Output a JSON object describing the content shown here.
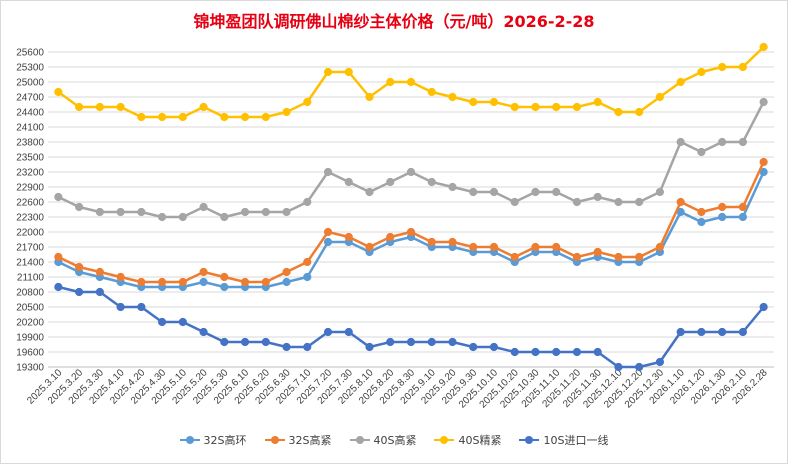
{
  "chart_data": {
    "type": "line",
    "title": "锦坤盈团队调研佛山棉纱主体价格（元/吨）2026-2-28",
    "xlabel": "",
    "ylabel": "",
    "ylim": [
      19300,
      25600
    ],
    "yticks": [
      19300,
      19600,
      19900,
      20200,
      20500,
      20800,
      21100,
      21400,
      21700,
      22000,
      22300,
      22600,
      22900,
      23200,
      23500,
      23800,
      24100,
      24400,
      24700,
      25000,
      25300,
      25600
    ],
    "grid": "horizontal",
    "legend_position": "bottom",
    "categories": [
      "2025.3.10",
      "2025.3.20",
      "2025.3.30",
      "2025.4.10",
      "2025.4.20",
      "2025.4.30",
      "2025.5.10",
      "2025.5.20",
      "2025.5.30",
      "2025.6.10",
      "2025.6.20",
      "2025.6.30",
      "2025.7.10",
      "2025.7.20",
      "2025.7.30",
      "2025.8.10",
      "2025.8.20",
      "2025.8.30",
      "2025.9.10",
      "2025.9.20",
      "2025.9.30",
      "2025.10.10",
      "2025.10.20",
      "2025.10.30",
      "2025.11.10",
      "2025.11.20",
      "2025.11.30",
      "2025.12.10",
      "2025.12.20",
      "2025.12.30",
      "2026.1.10",
      "2026.1.20",
      "2026.1.30",
      "2026.2.10",
      "2026.2.28"
    ],
    "series": [
      {
        "name": "32S高环",
        "color": "#5b9bd5",
        "values": [
          21400,
          21200,
          21100,
          21000,
          20900,
          20900,
          20900,
          21000,
          20900,
          20900,
          20900,
          21000,
          21100,
          21800,
          21800,
          21600,
          21800,
          21900,
          21700,
          21700,
          21600,
          21600,
          21400,
          21600,
          21600,
          21400,
          21500,
          21400,
          21400,
          21600,
          22400,
          22200,
          22300,
          22300,
          23200
        ]
      },
      {
        "name": "32S高紧",
        "color": "#ed7d31",
        "values": [
          21500,
          21300,
          21200,
          21100,
          21000,
          21000,
          21000,
          21200,
          21100,
          21000,
          21000,
          21200,
          21400,
          22000,
          21900,
          21700,
          21900,
          22000,
          21800,
          21800,
          21700,
          21700,
          21500,
          21700,
          21700,
          21500,
          21600,
          21500,
          21500,
          21700,
          22600,
          22400,
          22500,
          22500,
          23400
        ]
      },
      {
        "name": "40S高紧",
        "color": "#a5a5a5",
        "values": [
          22700,
          22500,
          22400,
          22400,
          22400,
          22300,
          22300,
          22500,
          22300,
          22400,
          22400,
          22400,
          22600,
          23200,
          23000,
          22800,
          23000,
          23200,
          23000,
          22900,
          22800,
          22800,
          22600,
          22800,
          22800,
          22600,
          22700,
          22600,
          22600,
          22800,
          23800,
          23600,
          23800,
          23800,
          24600
        ]
      },
      {
        "name": "40S精紧",
        "color": "#ffc000",
        "values": [
          24800,
          24500,
          24500,
          24500,
          24300,
          24300,
          24300,
          24500,
          24300,
          24300,
          24300,
          24400,
          24600,
          25200,
          25200,
          24700,
          25000,
          25000,
          24800,
          24700,
          24600,
          24600,
          24500,
          24500,
          24500,
          24500,
          24600,
          24400,
          24400,
          24700,
          25000,
          25200,
          25300,
          25300,
          25700
        ]
      },
      {
        "name": "10S进口一线",
        "color": "#4472c4",
        "values": [
          20900,
          20800,
          20800,
          20500,
          20500,
          20200,
          20200,
          20000,
          19800,
          19800,
          19800,
          19700,
          19700,
          20000,
          20000,
          19700,
          19800,
          19800,
          19800,
          19800,
          19700,
          19700,
          19600,
          19600,
          19600,
          19600,
          19600,
          19300,
          19300,
          19400,
          20000,
          20000,
          20000,
          20000,
          20500
        ]
      }
    ]
  }
}
